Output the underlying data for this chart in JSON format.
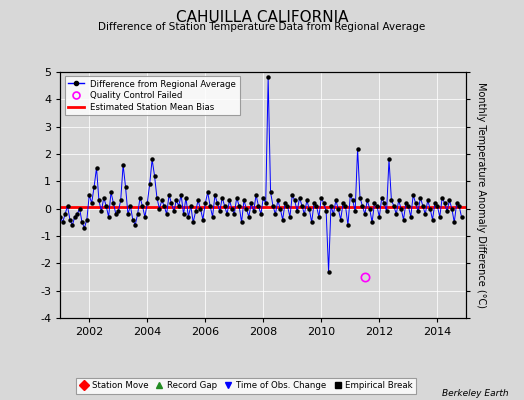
{
  "title": "CAHUILLA CALIFORNIA",
  "subtitle": "Difference of Station Temperature Data from Regional Average",
  "ylabel": "Monthly Temperature Anomaly Difference (°C)",
  "xlim": [
    2001.0,
    2015.0
  ],
  "ylim": [
    -4,
    5
  ],
  "yticks": [
    -4,
    -3,
    -2,
    -1,
    0,
    1,
    2,
    3,
    4,
    5
  ],
  "xticks": [
    2002,
    2004,
    2006,
    2008,
    2010,
    2012,
    2014
  ],
  "bg_color": "#d8d8d8",
  "plot_bg_color": "#d8d8d8",
  "line_color": "#0000ff",
  "bias_color": "#ff0000",
  "bias_value": 0.05,
  "berkeley_earth_label": "Berkeley Earth",
  "time_series": {
    "dates": [
      2001.0,
      2001.083,
      2001.167,
      2001.25,
      2001.333,
      2001.417,
      2001.5,
      2001.583,
      2001.667,
      2001.75,
      2001.833,
      2001.917,
      2002.0,
      2002.083,
      2002.167,
      2002.25,
      2002.333,
      2002.417,
      2002.5,
      2002.583,
      2002.667,
      2002.75,
      2002.833,
      2002.917,
      2003.0,
      2003.083,
      2003.167,
      2003.25,
      2003.333,
      2003.417,
      2003.5,
      2003.583,
      2003.667,
      2003.75,
      2003.833,
      2003.917,
      2004.0,
      2004.083,
      2004.167,
      2004.25,
      2004.333,
      2004.417,
      2004.5,
      2004.583,
      2004.667,
      2004.75,
      2004.833,
      2004.917,
      2005.0,
      2005.083,
      2005.167,
      2005.25,
      2005.333,
      2005.417,
      2005.5,
      2005.583,
      2005.667,
      2005.75,
      2005.833,
      2005.917,
      2006.0,
      2006.083,
      2006.167,
      2006.25,
      2006.333,
      2006.417,
      2006.5,
      2006.583,
      2006.667,
      2006.75,
      2006.833,
      2006.917,
      2007.0,
      2007.083,
      2007.167,
      2007.25,
      2007.333,
      2007.417,
      2007.5,
      2007.583,
      2007.667,
      2007.75,
      2007.833,
      2007.917,
      2008.0,
      2008.083,
      2008.167,
      2008.25,
      2008.333,
      2008.417,
      2008.5,
      2008.583,
      2008.667,
      2008.75,
      2008.833,
      2008.917,
      2009.0,
      2009.083,
      2009.167,
      2009.25,
      2009.333,
      2009.417,
      2009.5,
      2009.583,
      2009.667,
      2009.75,
      2009.833,
      2009.917,
      2010.0,
      2010.083,
      2010.167,
      2010.25,
      2010.333,
      2010.417,
      2010.5,
      2010.583,
      2010.667,
      2010.75,
      2010.833,
      2010.917,
      2011.0,
      2011.083,
      2011.167,
      2011.25,
      2011.333,
      2011.417,
      2011.5,
      2011.583,
      2011.667,
      2011.75,
      2011.833,
      2011.917,
      2012.0,
      2012.083,
      2012.167,
      2012.25,
      2012.333,
      2012.417,
      2012.5,
      2012.583,
      2012.667,
      2012.75,
      2012.833,
      2012.917,
      2013.0,
      2013.083,
      2013.167,
      2013.25,
      2013.333,
      2013.417,
      2013.5,
      2013.583,
      2013.667,
      2013.75,
      2013.833,
      2013.917,
      2014.0,
      2014.083,
      2014.167,
      2014.25,
      2014.333,
      2014.417,
      2014.5,
      2014.583,
      2014.667,
      2014.75,
      2014.833
    ],
    "values": [
      -0.3,
      -0.5,
      -0.2,
      0.1,
      -0.4,
      -0.6,
      -0.3,
      -0.2,
      0.0,
      -0.5,
      -0.7,
      -0.4,
      0.5,
      0.2,
      0.8,
      1.5,
      0.3,
      -0.1,
      0.4,
      0.1,
      -0.3,
      0.6,
      0.2,
      -0.2,
      -0.1,
      0.3,
      1.6,
      0.8,
      -0.2,
      0.1,
      -0.4,
      -0.6,
      -0.2,
      0.4,
      0.1,
      -0.3,
      0.2,
      0.9,
      1.8,
      1.2,
      0.4,
      0.0,
      0.3,
      0.1,
      -0.2,
      0.5,
      0.2,
      -0.1,
      0.3,
      0.1,
      0.5,
      -0.2,
      0.4,
      -0.3,
      0.1,
      -0.5,
      -0.1,
      0.3,
      0.0,
      -0.4,
      0.2,
      0.6,
      0.1,
      -0.3,
      0.5,
      0.2,
      -0.1,
      0.4,
      0.1,
      -0.2,
      0.3,
      0.0,
      -0.2,
      0.4,
      0.1,
      -0.5,
      0.3,
      0.0,
      -0.3,
      0.2,
      -0.1,
      0.5,
      0.1,
      -0.2,
      0.4,
      0.2,
      4.8,
      0.6,
      0.1,
      -0.2,
      0.3,
      0.0,
      -0.4,
      0.2,
      0.1,
      -0.3,
      0.5,
      0.3,
      -0.1,
      0.4,
      0.1,
      -0.2,
      0.3,
      0.0,
      -0.5,
      0.2,
      0.1,
      -0.3,
      0.4,
      0.2,
      -0.1,
      -2.3,
      0.1,
      -0.2,
      0.3,
      0.0,
      -0.4,
      0.2,
      0.1,
      -0.6,
      0.5,
      0.3,
      -0.1,
      2.2,
      0.4,
      0.1,
      -0.2,
      0.3,
      0.0,
      -0.5,
      0.2,
      0.1,
      -0.3,
      0.4,
      0.2,
      -0.1,
      1.8,
      0.3,
      0.1,
      -0.2,
      0.3,
      0.0,
      -0.4,
      0.2,
      0.1,
      -0.3,
      0.5,
      0.2,
      -0.1,
      0.4,
      0.1,
      -0.2,
      0.3,
      0.0,
      -0.4,
      0.2,
      0.1,
      -0.3,
      0.4,
      0.2,
      -0.1,
      0.3,
      0.0,
      -0.5,
      0.2,
      0.1,
      -0.3
    ]
  },
  "qc_failed": [
    {
      "date": 2011.5,
      "value": -2.5
    }
  ],
  "legend1_items": [
    {
      "label": "Difference from Regional Average",
      "color": "#0000ff",
      "marker": "o",
      "markersize": 4,
      "linestyle": "-"
    },
    {
      "label": "Quality Control Failed",
      "color": "#ff00ff",
      "marker": "o",
      "markersize": 6,
      "linestyle": "none",
      "fillstyle": "none"
    },
    {
      "label": "Estimated Station Mean Bias",
      "color": "#ff0000",
      "marker": null,
      "linestyle": "-"
    }
  ],
  "legend2_items": [
    {
      "label": "Station Move",
      "color": "#ff0000",
      "marker": "D",
      "markersize": 6
    },
    {
      "label": "Record Gap",
      "color": "#228B22",
      "marker": "^",
      "markersize": 6
    },
    {
      "label": "Time of Obs. Change",
      "color": "#0000ff",
      "marker": "v",
      "markersize": 6
    },
    {
      "label": "Empirical Break",
      "color": "#000000",
      "marker": "s",
      "markersize": 5
    }
  ]
}
